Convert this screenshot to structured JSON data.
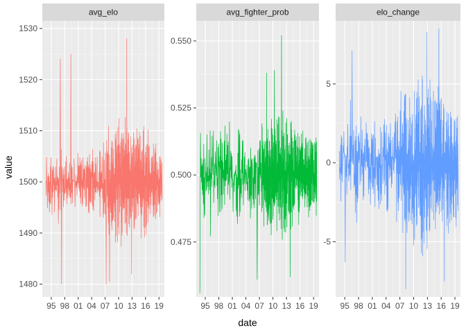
{
  "colors": {
    "panel_bg": "#ebebeb",
    "strip_bg": "#d9d9d9",
    "grid_major": "#ffffff",
    "grid_minor": "#f5f5f5"
  },
  "chart_data": {
    "type": "line",
    "xlabel": "date",
    "ylabel": "value",
    "facet_layout": "1 row x 3 columns, free y scales",
    "x_range_years": [
      1993.0,
      2020.2
    ],
    "x_ticks": [
      {
        "year": 1995,
        "label": "95"
      },
      {
        "year": 1998,
        "label": "98"
      },
      {
        "year": 2001,
        "label": "01"
      },
      {
        "year": 2004,
        "label": "04"
      },
      {
        "year": 2007,
        "label": "07"
      },
      {
        "year": 2010,
        "label": "10"
      },
      {
        "year": 2013,
        "label": "13"
      },
      {
        "year": 2016,
        "label": "16"
      },
      {
        "year": 2019,
        "label": "19"
      }
    ],
    "series": [
      {
        "name": "avg_elo",
        "color": "#F8766D",
        "ylim": [
          1477.5,
          1531.5
        ],
        "y_ticks": [
          1480,
          1490,
          1500,
          1510,
          1520,
          1530
        ],
        "center": 1500,
        "start_year": 1993.8,
        "end_year": 2019.7,
        "n_points": 640,
        "seed": 11,
        "envelope": [
          [
            1993.8,
            6
          ],
          [
            1996.0,
            7
          ],
          [
            2000.0,
            5
          ],
          [
            2005.0,
            6
          ],
          [
            2008.0,
            10
          ],
          [
            2012.0,
            11
          ],
          [
            2016.0,
            9
          ],
          [
            2019.7,
            6
          ]
        ],
        "dense_from_year": 2007.5,
        "spikes": [
          {
            "year": 1997.0,
            "value": 1524
          },
          {
            "year": 1997.3,
            "value": 1480
          },
          {
            "year": 1999.4,
            "value": 1525
          },
          {
            "year": 2007.2,
            "value": 1480
          },
          {
            "year": 2008.0,
            "value": 1480.5
          },
          {
            "year": 2011.8,
            "value": 1528
          },
          {
            "year": 2012.9,
            "value": 1482
          }
        ]
      },
      {
        "name": "avg_fighter_prob",
        "color": "#00BA38",
        "ylim": [
          0.4545,
          0.5575
        ],
        "y_ticks": [
          0.475,
          0.5,
          0.525,
          0.55
        ],
        "tick_labels": [
          "0.475",
          "0.500",
          "0.525",
          "0.550"
        ],
        "center": 0.5,
        "start_year": 1993.8,
        "end_year": 2019.7,
        "n_points": 640,
        "seed": 23,
        "envelope": [
          [
            1993.8,
            0.02
          ],
          [
            1998.0,
            0.018
          ],
          [
            2004.0,
            0.014
          ],
          [
            2008.0,
            0.02
          ],
          [
            2012.0,
            0.02
          ],
          [
            2019.7,
            0.014
          ]
        ],
        "dense_from_year": 2007.5,
        "spikes": [
          {
            "year": 1993.8,
            "value": 0.456
          },
          {
            "year": 2006.5,
            "value": 0.461
          },
          {
            "year": 2008.6,
            "value": 0.538
          },
          {
            "year": 2010.3,
            "value": 0.539
          },
          {
            "year": 2011.9,
            "value": 0.552
          },
          {
            "year": 2013.8,
            "value": 0.462
          }
        ]
      },
      {
        "name": "elo_change",
        "color": "#619CFF",
        "ylim": [
          -8.5,
          9.0
        ],
        "y_ticks": [
          -5,
          0,
          5
        ],
        "center": 0,
        "start_year": 1993.8,
        "end_year": 2019.7,
        "n_points": 640,
        "seed": 37,
        "envelope": [
          [
            1993.8,
            3.5
          ],
          [
            1996.0,
            4.0
          ],
          [
            2000.0,
            2.5
          ],
          [
            2005.0,
            3.0
          ],
          [
            2008.0,
            4.5
          ],
          [
            2012.0,
            5.0
          ],
          [
            2016.0,
            4.0
          ],
          [
            2019.7,
            3.5
          ]
        ],
        "dense_from_year": 2007.5,
        "spikes": [
          {
            "year": 1995.1,
            "value": -6.3
          },
          {
            "year": 1996.6,
            "value": 7.1
          },
          {
            "year": 2008.3,
            "value": -8.0
          },
          {
            "year": 2012.9,
            "value": 8.3
          },
          {
            "year": 2015.5,
            "value": 8.5
          },
          {
            "year": 2016.7,
            "value": -7.5
          }
        ]
      }
    ]
  }
}
